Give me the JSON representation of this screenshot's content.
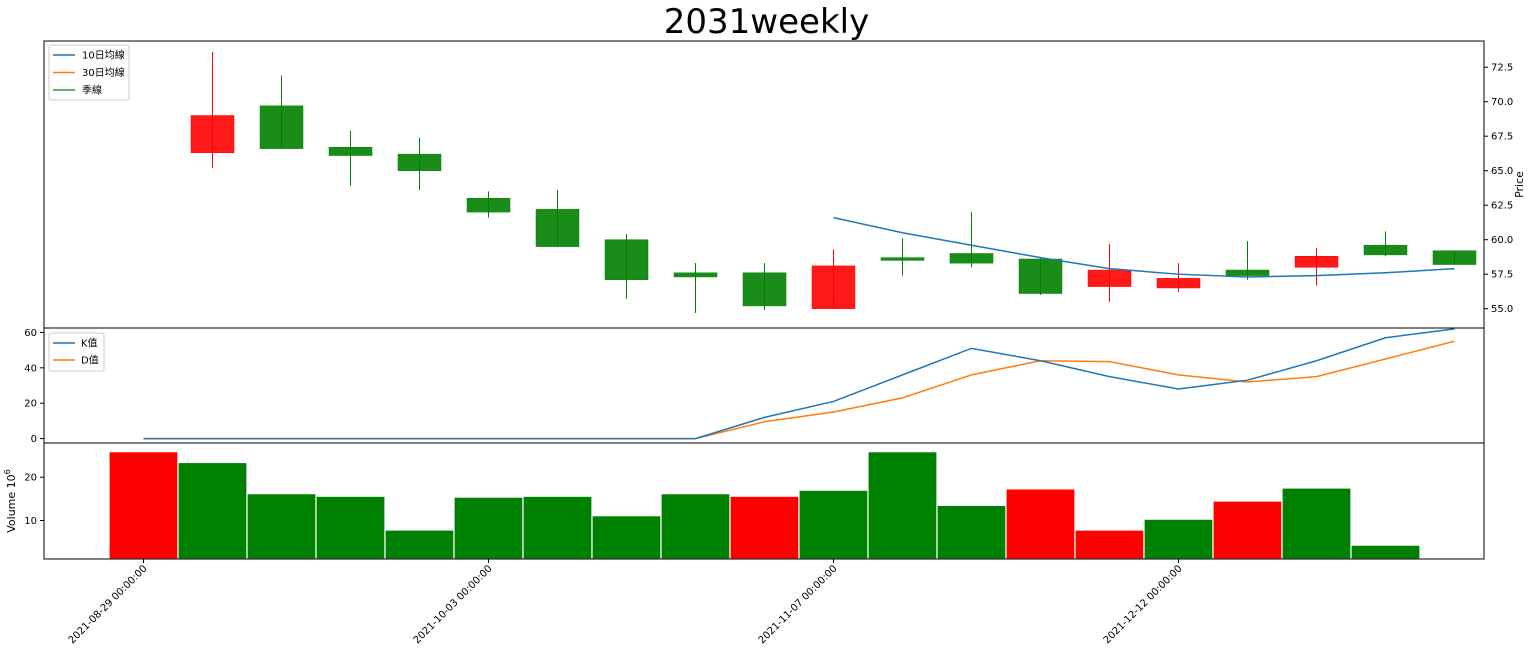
{
  "title": "2031weekly",
  "colors": {
    "up": "#ff0000",
    "down": "#008000",
    "ma10": "#1f77b4",
    "ma30": "#ff7f0e",
    "season": "#2ca02c",
    "k": "#1f77b4",
    "d": "#ff7f0e"
  },
  "chart_data": [
    {
      "type": "candlestick",
      "name": "price",
      "ylabel": "Price",
      "ylim": [
        53.6,
        74.4
      ],
      "yticks": [
        55.0,
        57.5,
        60.0,
        62.5,
        65.0,
        67.5,
        70.0,
        72.5
      ],
      "legend": {
        "placement": "top-left",
        "entries": [
          "10日均線",
          "30日均線",
          "季線"
        ]
      },
      "candles": [
        {
          "index": 1,
          "open": 66.3,
          "high": 73.6,
          "low": 65.2,
          "close": 69.0,
          "direction": "up"
        },
        {
          "index": 2,
          "open": 69.7,
          "high": 71.9,
          "low": 66.6,
          "close": 66.6,
          "direction": "down"
        },
        {
          "index": 3,
          "open": 66.7,
          "high": 67.9,
          "low": 63.9,
          "close": 66.1,
          "direction": "down"
        },
        {
          "index": 4,
          "open": 66.2,
          "high": 67.4,
          "low": 63.6,
          "close": 65.0,
          "direction": "down"
        },
        {
          "index": 5,
          "open": 63.0,
          "high": 63.5,
          "low": 61.6,
          "close": 62.0,
          "direction": "down"
        },
        {
          "index": 6,
          "open": 62.2,
          "high": 63.6,
          "low": 59.5,
          "close": 59.5,
          "direction": "down"
        },
        {
          "index": 7,
          "open": 60.0,
          "high": 60.4,
          "low": 55.7,
          "close": 57.1,
          "direction": "down"
        },
        {
          "index": 8,
          "open": 57.6,
          "high": 58.3,
          "low": 54.7,
          "close": 57.3,
          "direction": "down"
        },
        {
          "index": 9,
          "open": 57.6,
          "high": 58.3,
          "low": 54.9,
          "close": 55.2,
          "direction": "down"
        },
        {
          "index": 10,
          "open": 55.0,
          "high": 59.3,
          "low": 55.0,
          "close": 58.1,
          "direction": "up"
        },
        {
          "index": 11,
          "open": 58.7,
          "high": 60.1,
          "low": 57.4,
          "close": 58.5,
          "direction": "down"
        },
        {
          "index": 12,
          "open": 59.0,
          "high": 62.0,
          "low": 58.0,
          "close": 58.3,
          "direction": "down"
        },
        {
          "index": 13,
          "open": 58.6,
          "high": 58.7,
          "low": 56.0,
          "close": 56.1,
          "direction": "down"
        },
        {
          "index": 14,
          "open": 56.6,
          "high": 59.7,
          "low": 55.5,
          "close": 57.8,
          "direction": "up"
        },
        {
          "index": 15,
          "open": 56.5,
          "high": 58.3,
          "low": 56.2,
          "close": 57.2,
          "direction": "up"
        },
        {
          "index": 16,
          "open": 57.8,
          "high": 59.9,
          "low": 57.1,
          "close": 57.4,
          "direction": "down"
        },
        {
          "index": 17,
          "open": 58.0,
          "high": 59.4,
          "low": 56.7,
          "close": 58.8,
          "direction": "up"
        },
        {
          "index": 18,
          "open": 59.6,
          "high": 60.6,
          "low": 58.8,
          "close": 58.9,
          "direction": "down"
        },
        {
          "index": 19,
          "open": 59.2,
          "high": 59.2,
          "low": 58.2,
          "close": 58.2,
          "direction": "down"
        }
      ],
      "series": [
        {
          "name": "10日均線",
          "x": [
            10,
            11,
            12,
            13,
            14,
            15,
            16,
            17,
            18,
            19
          ],
          "values": [
            61.6,
            60.5,
            59.6,
            58.7,
            57.9,
            57.5,
            57.3,
            57.4,
            57.6,
            57.9
          ]
        }
      ]
    },
    {
      "type": "line",
      "name": "kd",
      "ylim": [
        -2.5,
        62.5
      ],
      "yticks": [
        0,
        20,
        40,
        60
      ],
      "legend": {
        "placement": "top-left",
        "entries": [
          "K值",
          "D值"
        ]
      },
      "x": [
        0,
        1,
        2,
        3,
        4,
        5,
        6,
        7,
        8,
        9,
        10,
        11,
        12,
        13,
        14,
        15,
        16,
        17,
        18,
        19
      ],
      "series": [
        {
          "name": "K值",
          "values": [
            0,
            0,
            0,
            0,
            0,
            0,
            0,
            0,
            0,
            12,
            21,
            36,
            51,
            44,
            35,
            28,
            33,
            44,
            57,
            62
          ]
        },
        {
          "name": "D值",
          "values": [
            0,
            0,
            0,
            0,
            0,
            0,
            0,
            0,
            0,
            9.5,
            15,
            23,
            36,
            44,
            43.5,
            36,
            32,
            35,
            45,
            55
          ]
        }
      ]
    },
    {
      "type": "bar",
      "name": "volume",
      "ylabel": "Volume",
      "ylabel_exponent": "10",
      "ylabel_exponent_power": "6",
      "ylim": [
        1.1,
        27.9
      ],
      "yticks": [
        10,
        20
      ],
      "x": [
        0,
        1,
        2,
        3,
        4,
        5,
        6,
        7,
        8,
        9,
        10,
        11,
        12,
        13,
        14,
        15,
        16,
        17,
        18,
        19
      ],
      "values": [
        25.9,
        23.4,
        16.2,
        15.6,
        7.8,
        15.4,
        15.6,
        11.1,
        16.2,
        15.6,
        17.0,
        25.9,
        13.5,
        17.3,
        7.8,
        10.3,
        14.5,
        17.5,
        4.3,
        0
      ],
      "directions": [
        "up",
        "down",
        "down",
        "down",
        "down",
        "down",
        "down",
        "down",
        "down",
        "up",
        "down",
        "down",
        "down",
        "up",
        "up",
        "down",
        "up",
        "down",
        "down",
        "down"
      ],
      "xtick_positions": [
        0.5,
        5.5,
        10.5,
        15.5
      ],
      "xticks": [
        "2021-08-29 00:00:00",
        "2021-10-03 00:00:00",
        "2021-11-07 00:00:00",
        "2021-12-12 00:00:00"
      ]
    }
  ]
}
